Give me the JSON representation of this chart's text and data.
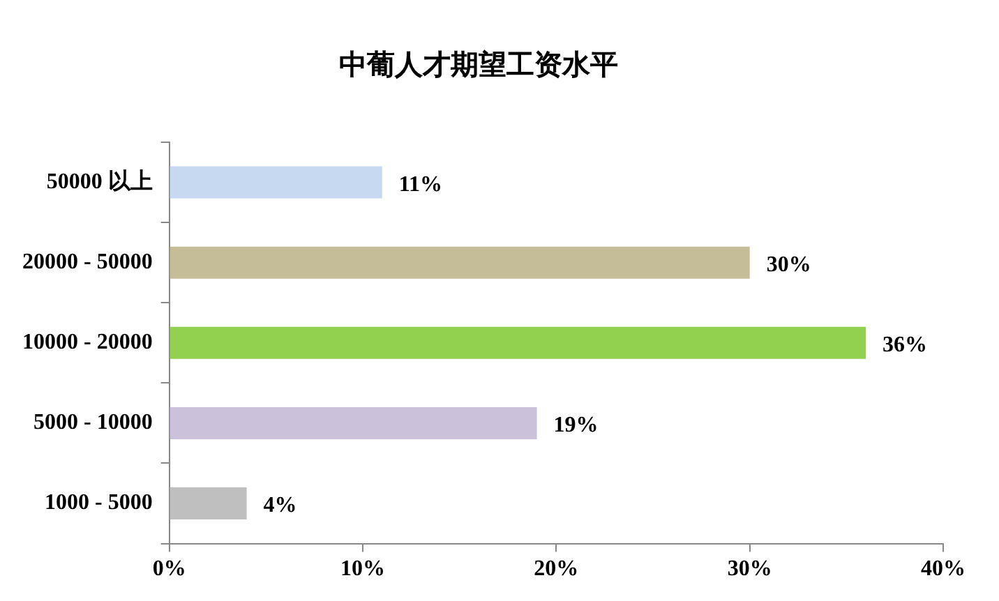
{
  "chart_data": {
    "type": "bar",
    "orientation": "horizontal",
    "title": "中葡人才期望工资水平",
    "categories": [
      "50000 以上",
      "20000 - 50000",
      "10000 - 20000",
      "5000 - 10000",
      "1000 - 5000"
    ],
    "values": [
      11,
      30,
      36,
      19,
      4
    ],
    "colors": [
      "#c6d9f1",
      "#c4bd97",
      "#92d050",
      "#ccc1da",
      "#bfbfbf"
    ],
    "value_labels": [
      "11%",
      "30%",
      "36%",
      "19%",
      "4%"
    ],
    "xlim": [
      0,
      40
    ],
    "xticks": [
      {
        "value": 0,
        "label": "0%"
      },
      {
        "value": 10,
        "label": "10%"
      },
      {
        "value": 20,
        "label": "20%"
      },
      {
        "value": 30,
        "label": "30%"
      },
      {
        "value": 40,
        "label": "40%"
      }
    ],
    "grid": false,
    "legend": false
  }
}
